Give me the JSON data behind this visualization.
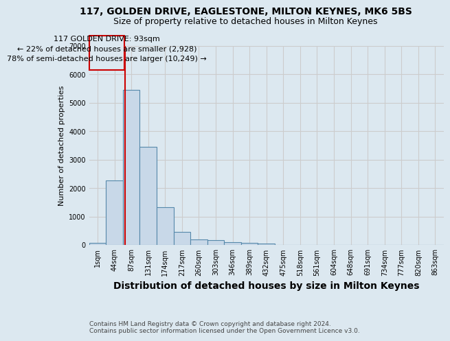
{
  "title": "117, GOLDEN DRIVE, EAGLESTONE, MILTON KEYNES, MK6 5BS",
  "subtitle": "Size of property relative to detached houses in Milton Keynes",
  "xlabel": "Distribution of detached houses by size in Milton Keynes",
  "ylabel": "Number of detached properties",
  "footer1": "Contains HM Land Registry data © Crown copyright and database right 2024.",
  "footer2": "Contains public sector information licensed under the Open Government Licence v3.0.",
  "bar_labels": [
    "1sqm",
    "44sqm",
    "87sqm",
    "131sqm",
    "174sqm",
    "217sqm",
    "260sqm",
    "303sqm",
    "346sqm",
    "389sqm",
    "432sqm",
    "475sqm",
    "518sqm",
    "561sqm",
    "604sqm",
    "648sqm",
    "691sqm",
    "734sqm",
    "777sqm",
    "820sqm",
    "863sqm"
  ],
  "bar_values": [
    75,
    2280,
    5450,
    3450,
    1320,
    450,
    190,
    160,
    100,
    80,
    50,
    0,
    0,
    0,
    0,
    0,
    0,
    0,
    0,
    0,
    0
  ],
  "bar_color": "#c8d8e8",
  "bar_edge_color": "#5588aa",
  "ylim": [
    0,
    7000
  ],
  "yticks": [
    0,
    1000,
    2000,
    3000,
    4000,
    5000,
    6000,
    7000
  ],
  "vline_color": "#cc0000",
  "annotation_title": "117 GOLDEN DRIVE: 93sqm",
  "annotation_line1": "← 22% of detached houses are smaller (2,928)",
  "annotation_line2": "78% of semi-detached houses are larger (10,249) →",
  "annotation_box_color": "#cc0000",
  "grid_color": "#cccccc",
  "background_color": "#dce8f0",
  "title_fontsize": 10,
  "subtitle_fontsize": 9,
  "xlabel_fontsize": 10,
  "ylabel_fontsize": 8,
  "tick_fontsize": 7,
  "annotation_fontsize": 8,
  "footer_fontsize": 6.5
}
